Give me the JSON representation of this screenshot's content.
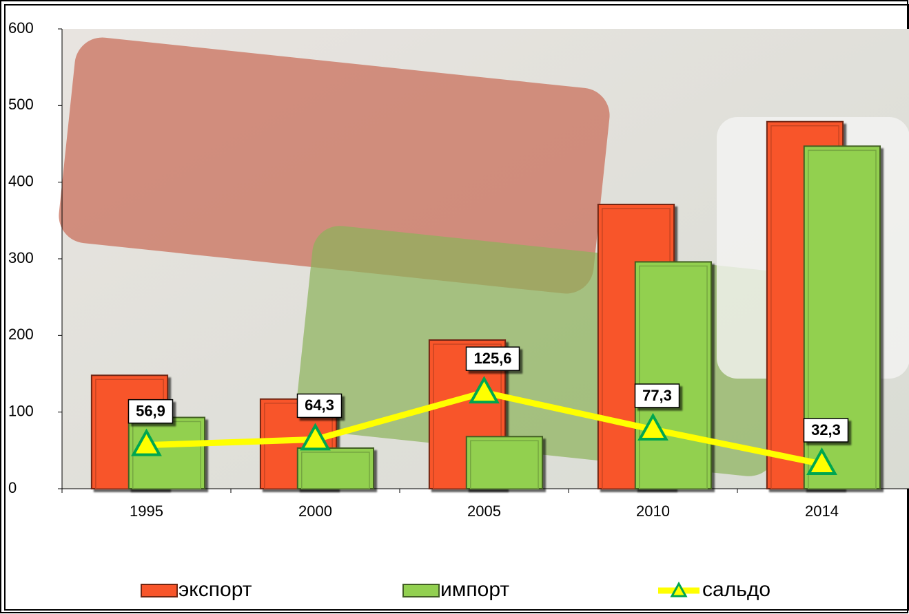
{
  "chart_data": {
    "type": "bar",
    "categories": [
      "1995",
      "2000",
      "2005",
      "2010",
      "2014"
    ],
    "series": [
      {
        "name": "экспорт",
        "color": "#f8552a",
        "values": [
          148,
          117,
          194,
          371,
          479
        ]
      },
      {
        "name": "импорт",
        "color": "#92d050",
        "values": [
          93,
          53,
          68,
          296,
          447
        ]
      },
      {
        "name": "сальдо",
        "type": "line",
        "color": "#ffff00",
        "marker_color": "#00a650",
        "values": [
          56.9,
          64.3,
          125.6,
          77.3,
          32.3
        ],
        "value_labels": [
          "56,9",
          "64,3",
          "125,6",
          "77,3",
          "32,3"
        ]
      }
    ],
    "ylim": [
      0,
      600
    ],
    "yticks": [
      0,
      100,
      200,
      300,
      400,
      500,
      600
    ],
    "grid": false,
    "legend": "bottom"
  }
}
